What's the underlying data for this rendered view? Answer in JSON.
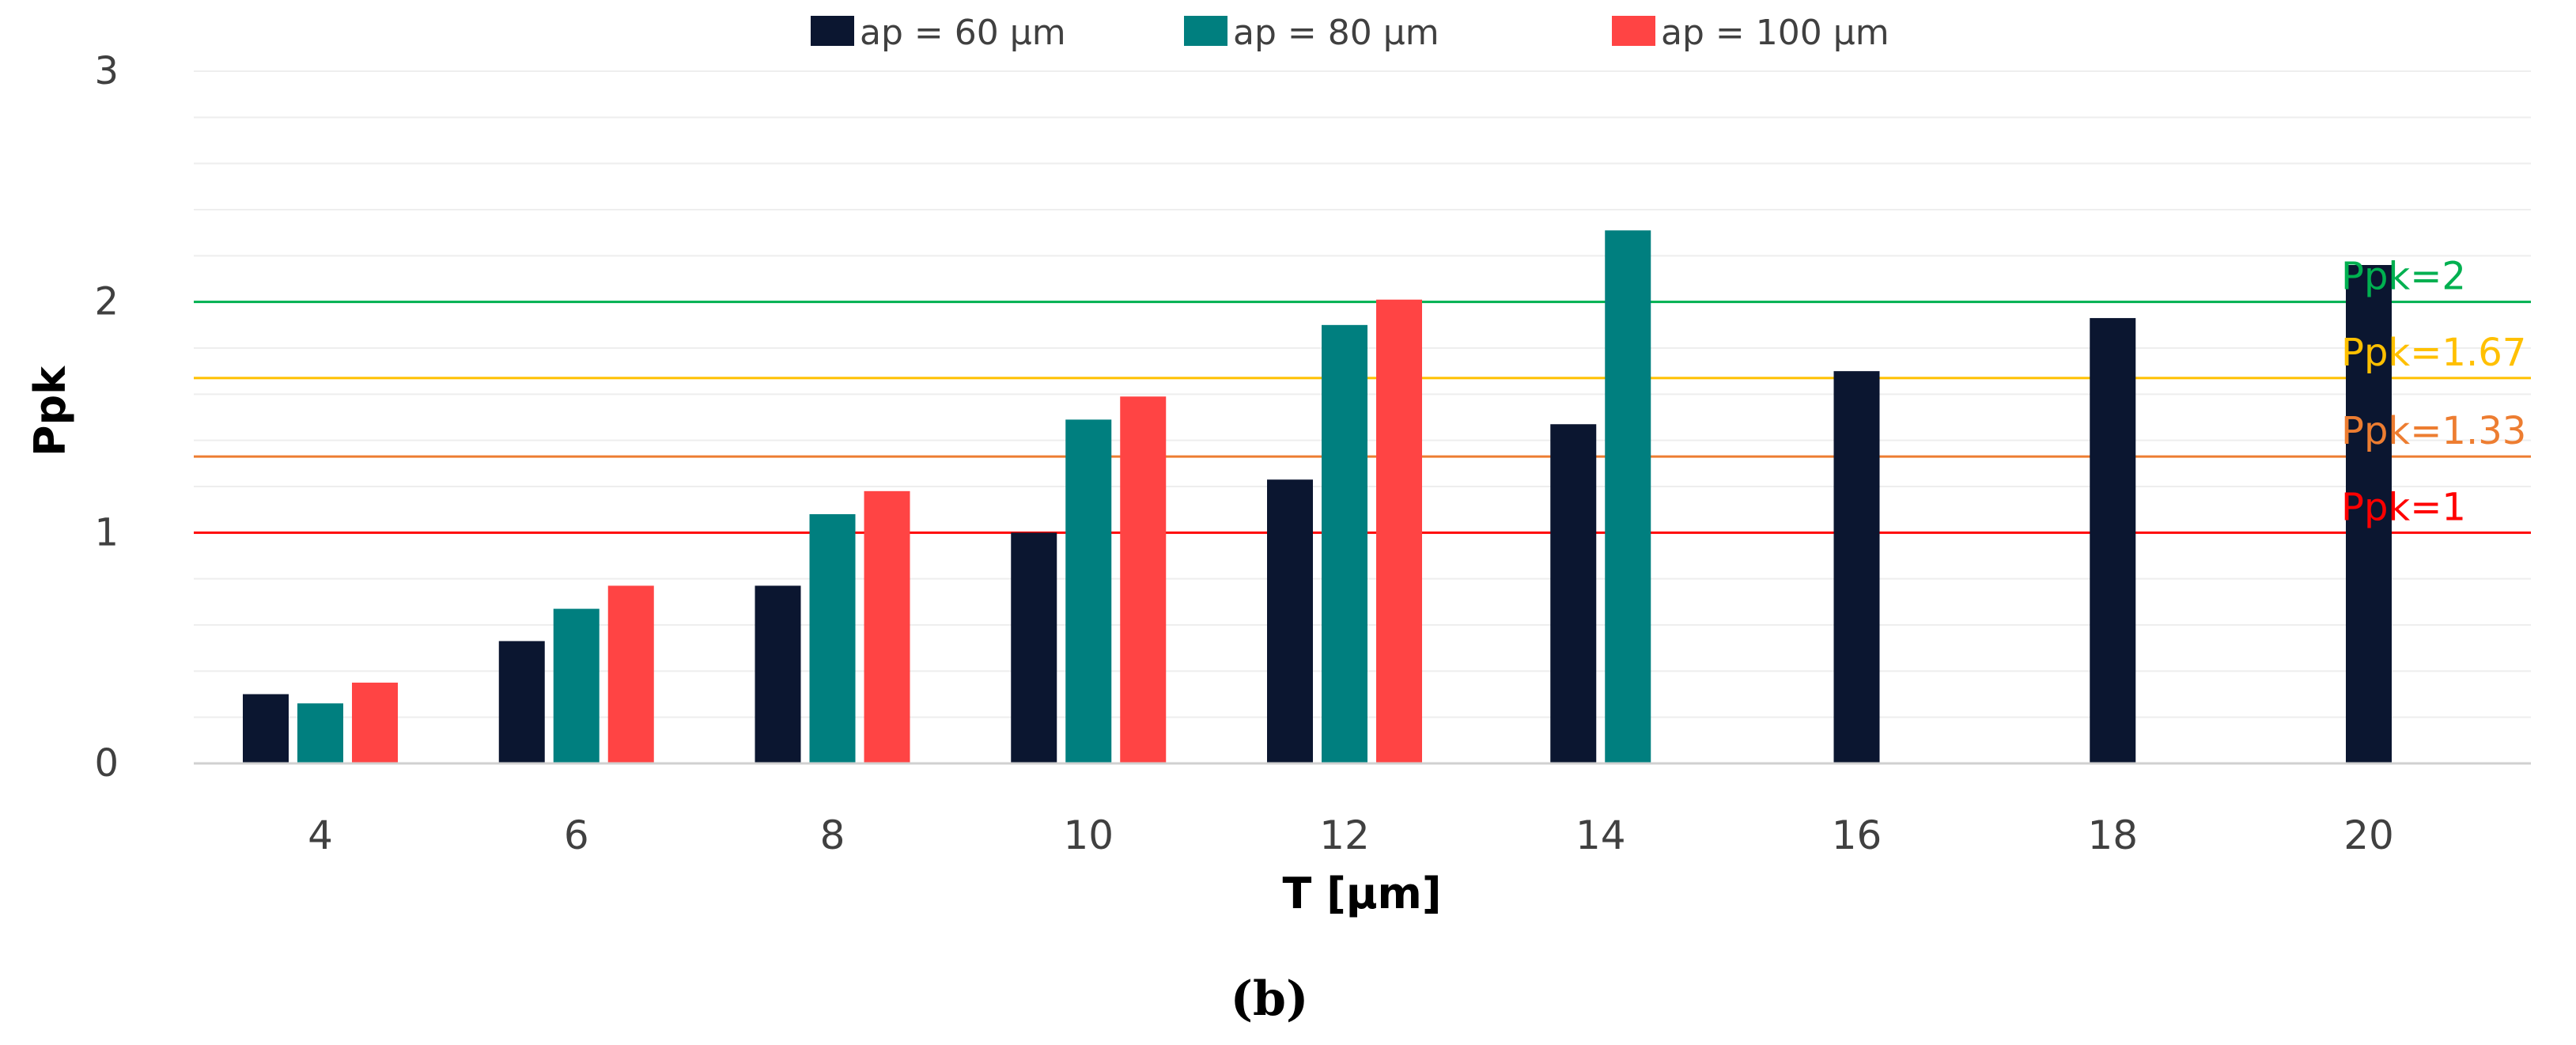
{
  "chart_data": {
    "type": "bar",
    "categories": [
      "4",
      "6",
      "8",
      "10",
      "12",
      "14",
      "16",
      "18",
      "20"
    ],
    "series": [
      {
        "name": "ap = 60 µm",
        "color": "#0b1630",
        "values": [
          0.3,
          0.53,
          0.77,
          1.0,
          1.23,
          1.47,
          1.7,
          1.93,
          2.16
        ]
      },
      {
        "name": "ap = 80 µm",
        "color": "#007f7f",
        "values": [
          0.26,
          0.67,
          1.08,
          1.49,
          1.9,
          2.31,
          null,
          null,
          null
        ]
      },
      {
        "name": "ap = 100 µm",
        "color": "#ff4444",
        "values": [
          0.35,
          0.77,
          1.18,
          1.59,
          2.01,
          null,
          null,
          null,
          null
        ]
      }
    ],
    "reference_lines": [
      {
        "label": "Ppk=2",
        "value": 2,
        "color": "#00b050"
      },
      {
        "label": "Ppk=1.67",
        "value": 1.67,
        "color": "#ffc000"
      },
      {
        "label": "Ppk=1.33",
        "value": 1.33,
        "color": "#ed7d31"
      },
      {
        "label": "Ppk=1",
        "value": 1,
        "color": "#ff0000"
      }
    ],
    "xlabel": "T [µm]",
    "ylabel": "Ppk",
    "ylim": [
      0,
      3
    ],
    "yticks": [
      0,
      1,
      2,
      3
    ],
    "grid": true,
    "legend_position": "top-center",
    "caption": "(b)"
  }
}
